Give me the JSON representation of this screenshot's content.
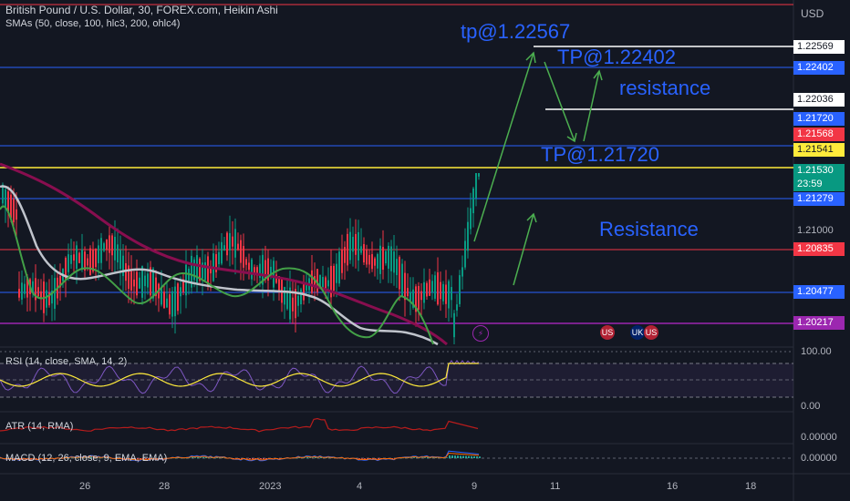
{
  "header": {
    "title": "British Pound / U.S. Dollar, 30, FOREX.com, Heikin Ashi",
    "sma_label": "SMAs (50, close, 100, hlc3, 200, ohlc4)"
  },
  "currency": "USD",
  "price_labels": [
    {
      "text": "1.22569",
      "bg": "#ffffff",
      "fg": "#131722"
    },
    {
      "text": "1.22402",
      "bg": "#2962ff",
      "fg": "#ffffff"
    },
    {
      "text": "1.22036",
      "bg": "#ffffff",
      "fg": "#131722"
    },
    {
      "text": "1.21720",
      "bg": "#2962ff",
      "fg": "#ffffff"
    },
    {
      "text": "1.21568",
      "bg": "#f23645",
      "fg": "#ffffff"
    },
    {
      "text": "1.21541",
      "bg": "#ffeb3b",
      "fg": "#131722"
    },
    {
      "text": "1.21530",
      "bg": "#089981",
      "fg": "#ffffff"
    },
    {
      "text": "23:59",
      "bg": "#089981",
      "fg": "#ffffff"
    },
    {
      "text": "1.21279",
      "bg": "#2962ff",
      "fg": "#ffffff"
    },
    {
      "text": "1.21000",
      "bg": "transparent",
      "fg": "#b2b5be"
    },
    {
      "text": "1.20835",
      "bg": "#f23645",
      "fg": "#ffffff"
    },
    {
      "text": "1.20477",
      "bg": "#2962ff",
      "fg": "#ffffff"
    },
    {
      "text": "1.20217",
      "bg": "#9c27b0",
      "fg": "#ffffff"
    }
  ],
  "annotations": {
    "tp1": "tp@1.22567",
    "tp2": "TP@1.22402",
    "tp3": "TP@1.21720",
    "resistance_upper": "resistance",
    "resistance_lower": "Resistance"
  },
  "indicators": {
    "rsi": {
      "label": "RSI (14, close, SMA, 14, 2)",
      "upper": "100.00",
      "lower": "0.00"
    },
    "atr": {
      "label": "ATR (14, RMA)",
      "value": "0.00000"
    },
    "macd": {
      "label": "MACD (12, 26, close, 9, EMA, EMA)",
      "value": "0.00000"
    }
  },
  "time_axis": [
    "26",
    "28",
    "2023",
    "4",
    "9",
    "11",
    "16",
    "18"
  ],
  "events": [
    {
      "icon": "lightning-icon",
      "glyph": "⚡",
      "color": "#9c27b0"
    },
    {
      "icon": "us-flag-icon",
      "glyph": "US",
      "color": "#b22234"
    },
    {
      "icon": "uk-flag-icon",
      "glyph": "UK",
      "color": "#012169"
    },
    {
      "icon": "us-flag-icon",
      "glyph": "US",
      "color": "#b22234"
    }
  ],
  "colors": {
    "background": "#131722",
    "up": "#089981",
    "down": "#f23645",
    "level_blue": "#2962ff",
    "level_red": "#f23645",
    "level_yellow": "#ffeb3b",
    "level_purple": "#9c27b0",
    "arrow": "#4caf50"
  }
}
